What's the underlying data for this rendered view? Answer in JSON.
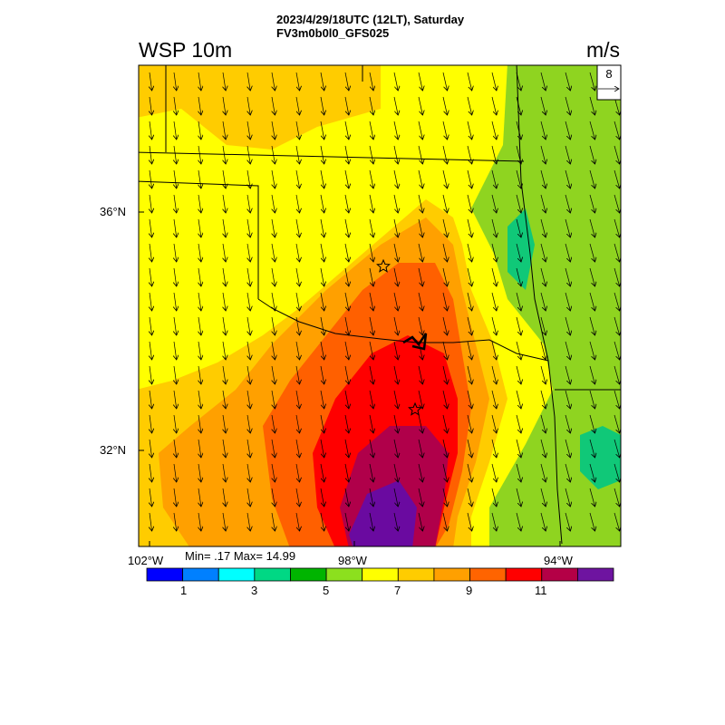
{
  "header": {
    "datetime": "2023/4/29/18UTC (12LT), Saturday",
    "model": "FV3m0b0l0_GFS025"
  },
  "map": {
    "variable_title": "WSP 10m",
    "units": "m/s",
    "reference_vector": {
      "value": "8",
      "arrow": "→"
    },
    "lat_labels": [
      "36°N",
      "32°N"
    ],
    "lon_labels": [
      "102°W",
      "98°W",
      "94°W"
    ],
    "stats": "Min= .17 Max= 14.99",
    "field_colors": {
      "green": "#8fd420",
      "yellow": "#ffff00",
      "gold": "#ffcc00",
      "orange": "#ffa000",
      "dark_orange": "#ff6000",
      "red": "#ff0000",
      "crimson": "#b0004a",
      "purple": "#6a0aa0",
      "teal": "#10c878"
    }
  },
  "colorbar": {
    "colors": [
      "#0000ff",
      "#0080ff",
      "#00ffff",
      "#00d884",
      "#00b400",
      "#8ce01e",
      "#ffff00",
      "#ffcc00",
      "#ffa000",
      "#ff6400",
      "#ff0000",
      "#b40046",
      "#6e14a0"
    ],
    "tick_labels": [
      "1",
      "3",
      "5",
      "7",
      "9",
      "11"
    ]
  }
}
